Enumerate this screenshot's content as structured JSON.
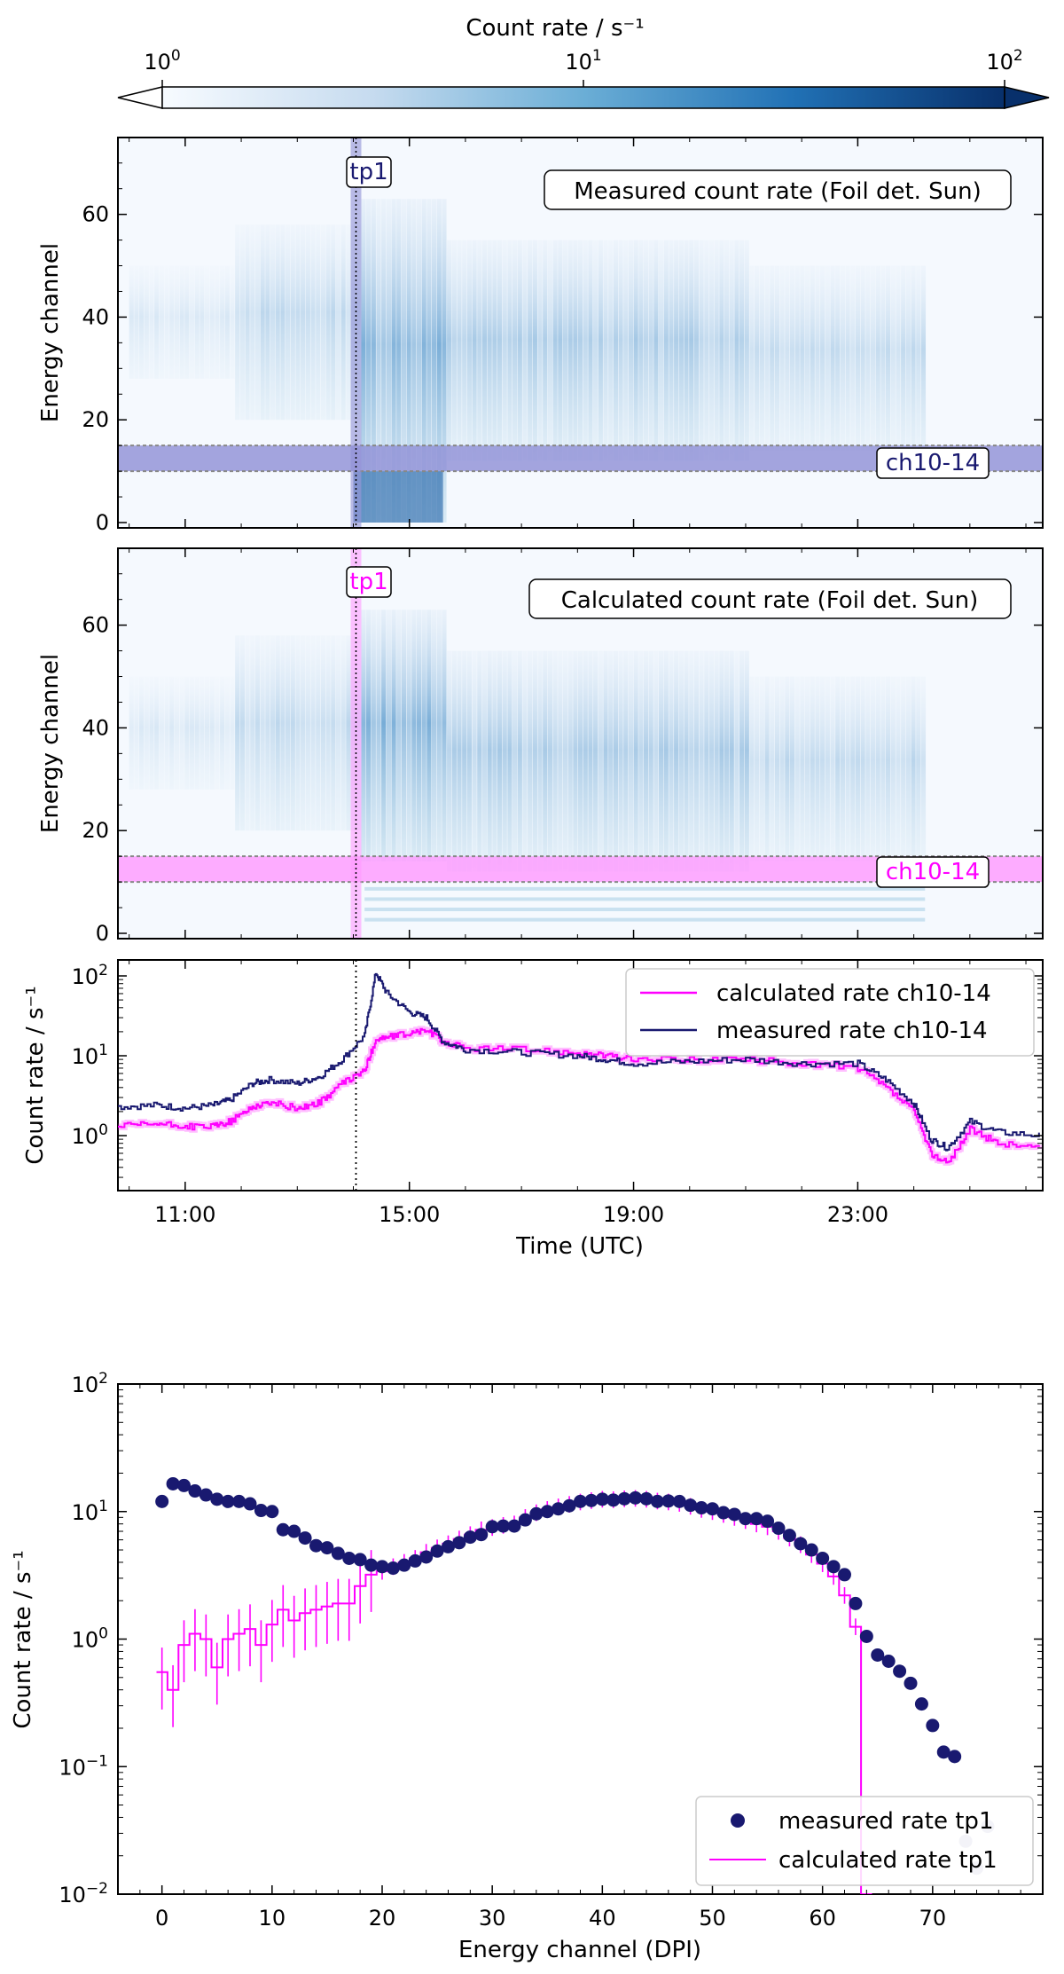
{
  "colorbar": {
    "label": "Count rate / s⁻¹",
    "ticks": [
      {
        "value": 1,
        "base": "10",
        "exp": "0"
      },
      {
        "value": 10,
        "base": "10",
        "exp": "1"
      },
      {
        "value": 100,
        "base": "10",
        "exp": "2"
      }
    ],
    "colors": [
      "#f7fbff",
      "#c6dbef",
      "#6baed6",
      "#2171b5",
      "#08306b"
    ]
  },
  "colors": {
    "measured": "#191970",
    "calculated": "#ff00ff",
    "band_measured": "#8f8fd6",
    "band_calculated": "#ff99ff"
  },
  "chart_data": [
    {
      "type": "heatmap",
      "ylabel": "Energy channel",
      "annotation": "Measured count rate (Foil det. Sun)",
      "xlim_hours": [
        9.8,
        26.3
      ],
      "ylim": [
        0,
        76
      ],
      "yticks": [
        "0",
        "20",
        "40",
        "60"
      ],
      "marker_label": "tp1",
      "marker_time": "14:00",
      "band_label": "ch10-14",
      "band_channels": [
        10,
        14
      ]
    },
    {
      "type": "heatmap",
      "ylabel": "Energy channel",
      "annotation": "Calculated count rate (Foil det. Sun)",
      "xlim_hours": [
        9.8,
        26.3
      ],
      "ylim": [
        0,
        76
      ],
      "yticks": [
        "0",
        "20",
        "40",
        "60"
      ],
      "marker_label": "tp1",
      "marker_time": "14:00",
      "band_label": "ch10-14",
      "band_channels": [
        10,
        14
      ]
    },
    {
      "type": "line",
      "xlabel": "Time (UTC)",
      "ylabel": "Count rate / s⁻¹",
      "xticks": [
        "11:00",
        "15:00",
        "19:00",
        "23:00"
      ],
      "ytick_exps": [
        "0",
        "1",
        "2"
      ],
      "yscale": "log",
      "series": [
        {
          "name": "calculated rate ch10-14",
          "points": [
            [
              9.8,
              1.3
            ],
            [
              10.5,
              1.4
            ],
            [
              11.0,
              1.3
            ],
            [
              11.5,
              1.3
            ],
            [
              11.8,
              1.5
            ],
            [
              12.2,
              2.3
            ],
            [
              12.5,
              2.6
            ],
            [
              13.0,
              2.2
            ],
            [
              13.4,
              2.6
            ],
            [
              13.8,
              4.5
            ],
            [
              14.2,
              6.5
            ],
            [
              14.4,
              16
            ],
            [
              14.6,
              17
            ],
            [
              15.0,
              19
            ],
            [
              15.3,
              21
            ],
            [
              15.6,
              15
            ],
            [
              16.0,
              12.5
            ],
            [
              17.0,
              12
            ],
            [
              18.0,
              11
            ],
            [
              18.5,
              10
            ],
            [
              19.0,
              9
            ],
            [
              20.0,
              9
            ],
            [
              21.0,
              9
            ],
            [
              22.0,
              8
            ],
            [
              23.0,
              7
            ],
            [
              23.5,
              4
            ],
            [
              24.0,
              2
            ],
            [
              24.3,
              0.6
            ],
            [
              24.6,
              0.45
            ],
            [
              25.0,
              1.2
            ],
            [
              25.5,
              0.8
            ],
            [
              26.3,
              0.7
            ]
          ]
        },
        {
          "name": "measured rate ch10-14",
          "points": [
            [
              9.8,
              2.3
            ],
            [
              10.5,
              2.4
            ],
            [
              11.0,
              2.2
            ],
            [
              11.5,
              2.4
            ],
            [
              11.8,
              2.8
            ],
            [
              12.2,
              4.5
            ],
            [
              12.5,
              5.0
            ],
            [
              13.0,
              4.5
            ],
            [
              13.4,
              5.5
            ],
            [
              13.8,
              9
            ],
            [
              14.2,
              18
            ],
            [
              14.4,
              110
            ],
            [
              14.6,
              60
            ],
            [
              15.0,
              35
            ],
            [
              15.3,
              30
            ],
            [
              15.6,
              15
            ],
            [
              16.0,
              12
            ],
            [
              17.0,
              11
            ],
            [
              18.0,
              10
            ],
            [
              18.5,
              9
            ],
            [
              19.0,
              8
            ],
            [
              20.0,
              8.5
            ],
            [
              21.0,
              9
            ],
            [
              22.0,
              8
            ],
            [
              23.0,
              8
            ],
            [
              23.5,
              5
            ],
            [
              24.0,
              2.5
            ],
            [
              24.3,
              0.9
            ],
            [
              24.6,
              0.7
            ],
            [
              25.0,
              1.5
            ],
            [
              25.5,
              1.1
            ],
            [
              26.3,
              1.0
            ]
          ]
        }
      ],
      "marker_time": "14:00"
    },
    {
      "type": "scatter",
      "xlabel": "Energy channel (DPI)",
      "ylabel": "Count rate / s⁻¹",
      "xlim": [
        -4,
        80
      ],
      "xticks": [
        "0",
        "10",
        "20",
        "30",
        "40",
        "50",
        "60",
        "70"
      ],
      "ylim": [
        0.01,
        100
      ],
      "yscale": "log",
      "ytick_exps": [
        "−2",
        "−1",
        "0",
        "1",
        "2"
      ],
      "series": [
        {
          "name": "measured rate tp1",
          "points": [
            [
              0,
              12
            ],
            [
              1,
              16.5
            ],
            [
              2,
              16
            ],
            [
              3,
              14.5
            ],
            [
              4,
              13.5
            ],
            [
              5,
              12.5
            ],
            [
              6,
              12
            ],
            [
              7,
              12
            ],
            [
              8,
              11.5
            ],
            [
              9,
              10.2
            ],
            [
              10,
              10
            ],
            [
              11,
              7.2
            ],
            [
              12,
              7
            ],
            [
              13,
              6.2
            ],
            [
              14,
              5.4
            ],
            [
              15,
              5.2
            ],
            [
              16,
              4.7
            ],
            [
              17,
              4.3
            ],
            [
              18,
              4.2
            ],
            [
              19,
              3.8
            ],
            [
              20,
              3.7
            ],
            [
              21,
              3.6
            ],
            [
              22,
              3.8
            ],
            [
              23,
              4.1
            ],
            [
              24,
              4.4
            ],
            [
              25,
              4.9
            ],
            [
              26,
              5.3
            ],
            [
              27,
              5.7
            ],
            [
              28,
              6.3
            ],
            [
              29,
              6.6
            ],
            [
              30,
              7.6
            ],
            [
              31,
              7.7
            ],
            [
              32,
              7.7
            ],
            [
              33,
              8.6
            ],
            [
              34,
              9.6
            ],
            [
              35,
              10
            ],
            [
              36,
              10.5
            ],
            [
              37,
              11.1
            ],
            [
              38,
              12
            ],
            [
              39,
              12.2
            ],
            [
              40,
              12.5
            ],
            [
              41,
              12.3
            ],
            [
              42,
              12.6
            ],
            [
              43,
              12.8
            ],
            [
              44,
              12.6
            ],
            [
              45,
              12
            ],
            [
              46,
              12.1
            ],
            [
              47,
              12
            ],
            [
              48,
              11.2
            ],
            [
              49,
              10.7
            ],
            [
              50,
              10.5
            ],
            [
              51,
              9.8
            ],
            [
              52,
              9.5
            ],
            [
              53,
              8.8
            ],
            [
              54,
              8.8
            ],
            [
              55,
              8.4
            ],
            [
              56,
              7.4
            ],
            [
              57,
              6.5
            ],
            [
              58,
              5.6
            ],
            [
              59,
              5
            ],
            [
              60,
              4.3
            ],
            [
              61,
              3.7
            ],
            [
              62,
              3.2
            ],
            [
              63,
              1.9
            ],
            [
              64,
              1.05
            ],
            [
              65,
              0.75
            ],
            [
              66,
              0.67
            ],
            [
              67,
              0.56
            ],
            [
              68,
              0.45
            ],
            [
              69,
              0.31
            ],
            [
              70,
              0.21
            ],
            [
              71,
              0.13
            ],
            [
              72,
              0.12
            ],
            [
              73,
              0.026
            ],
            [
              74,
              0.016
            ],
            [
              75,
              0.034
            ]
          ]
        },
        {
          "name": "calculated rate tp1",
          "points": [
            [
              0,
              0.55
            ],
            [
              1,
              0.4
            ],
            [
              2,
              0.9
            ],
            [
              3,
              1.1
            ],
            [
              4,
              1.0
            ],
            [
              5,
              0.6
            ],
            [
              6,
              1.0
            ],
            [
              7,
              1.1
            ],
            [
              8,
              1.2
            ],
            [
              9,
              0.9
            ],
            [
              10,
              1.3
            ],
            [
              11,
              1.7
            ],
            [
              12,
              1.4
            ],
            [
              13,
              1.6
            ],
            [
              14,
              1.7
            ],
            [
              15,
              1.8
            ],
            [
              16,
              1.9
            ],
            [
              17,
              1.9
            ],
            [
              18,
              2.6
            ],
            [
              19,
              3.2
            ],
            [
              20,
              3.4
            ],
            [
              21,
              3.7
            ],
            [
              22,
              4.0
            ],
            [
              23,
              4.3
            ],
            [
              24,
              4.8
            ],
            [
              25,
              5.2
            ],
            [
              26,
              5.6
            ],
            [
              27,
              6.1
            ],
            [
              28,
              6.6
            ],
            [
              29,
              7.2
            ],
            [
              30,
              7.5
            ],
            [
              31,
              7.8
            ],
            [
              32,
              8.0
            ],
            [
              33,
              9.0
            ],
            [
              34,
              9.8
            ],
            [
              35,
              10.4
            ],
            [
              36,
              10.9
            ],
            [
              37,
              11.4
            ],
            [
              38,
              11.9
            ],
            [
              39,
              12.2
            ],
            [
              40,
              12.5
            ],
            [
              41,
              12.4
            ],
            [
              42,
              12.6
            ],
            [
              43,
              12.7
            ],
            [
              44,
              12.5
            ],
            [
              45,
              12.1
            ],
            [
              46,
              11.9
            ],
            [
              47,
              11.6
            ],
            [
              48,
              11.0
            ],
            [
              49,
              10.4
            ],
            [
              50,
              10.0
            ],
            [
              51,
              9.5
            ],
            [
              52,
              9.0
            ],
            [
              53,
              8.5
            ],
            [
              54,
              8.0
            ],
            [
              55,
              7.6
            ],
            [
              56,
              7.0
            ],
            [
              57,
              6.2
            ],
            [
              58,
              5.5
            ],
            [
              59,
              4.6
            ],
            [
              60,
              3.9
            ],
            [
              61,
              3.1
            ],
            [
              62,
              2.2
            ],
            [
              63,
              1.25
            ],
            [
              64,
              0.01
            ]
          ]
        }
      ]
    }
  ]
}
